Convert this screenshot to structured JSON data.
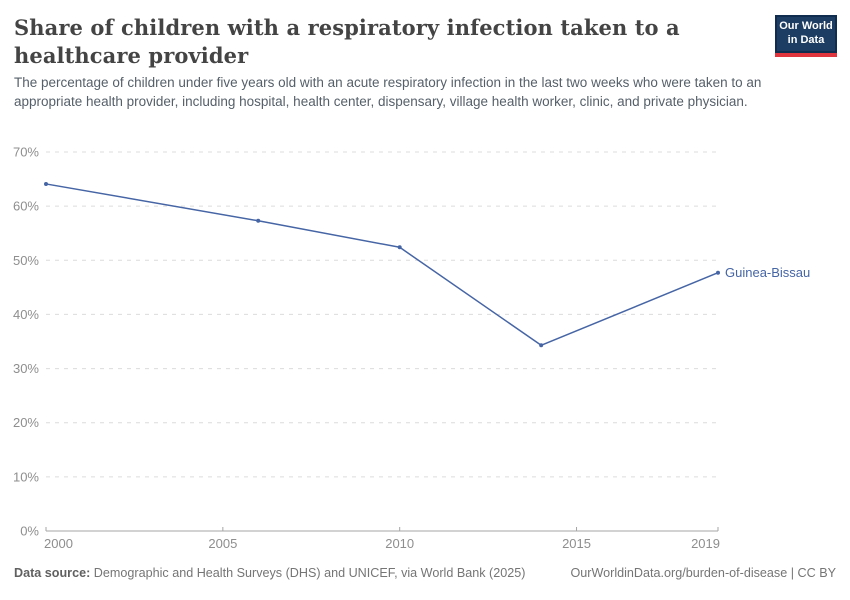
{
  "header": {
    "title": "Share of children with a respiratory infection taken to a healthcare provider",
    "subtitle": "The percentage of children under five years old with an acute respiratory infection in the last two weeks who were taken to an appropriate health provider, including hospital, health center, dispensary, village health worker, clinic, and private physician.",
    "logo": {
      "line1": "Our World",
      "line2": "in Data",
      "bg_color": "#1d3d63",
      "bar_color": "#e0353f"
    }
  },
  "chart_data": {
    "type": "line",
    "title": "Share of children with a respiratory infection taken to a healthcare provider",
    "series": [
      {
        "name": "Guinea-Bissau",
        "x": [
          2000,
          2006,
          2010,
          2014,
          2019
        ],
        "values": [
          64.1,
          57.3,
          52.4,
          34.3,
          47.7
        ],
        "color": "#4665a5"
      }
    ],
    "xlim": [
      2000,
      2019
    ],
    "ylim": [
      0,
      70
    ],
    "yticks": [
      0,
      10,
      20,
      30,
      40,
      50,
      60,
      70
    ],
    "ytick_suffix": "%",
    "xticks": [
      2000,
      2005,
      2010,
      2015,
      2019
    ],
    "grid": "horizontal-dashed",
    "legend_position": "end-of-line-label",
    "xlabel": "",
    "ylabel": ""
  },
  "footer": {
    "data_source_label": "Data source:",
    "data_source_text": " Demographic and Health Surveys (DHS) and UNICEF, via World Bank (2025)",
    "attribution": "OurWorldinData.org/burden-of-disease | CC BY"
  }
}
